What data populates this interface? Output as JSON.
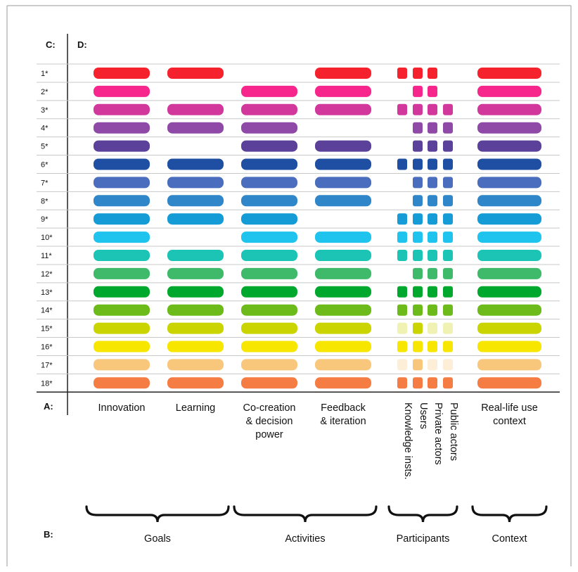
{
  "labels": {
    "c": "C:",
    "d": "D:",
    "a": "A:",
    "b": "B:"
  },
  "rows": [
    "1*",
    "2*",
    "3*",
    "4*",
    "5*",
    "6*",
    "7*",
    "8*",
    "9*",
    "10*",
    "11*",
    "12*",
    "13*",
    "14*",
    "15*",
    "16*",
    "17*",
    "18*"
  ],
  "row_colors": [
    "#f5222d",
    "#f7268c",
    "#d2389c",
    "#8e4aa6",
    "#5b419a",
    "#1f4fa3",
    "#4a6ebd",
    "#2f86c9",
    "#159bd6",
    "#1fc4ee",
    "#1cc4b6",
    "#3fba6a",
    "#00a82d",
    "#6dbb1a",
    "#c9d400",
    "#f7e600",
    "#f9c77c",
    "#f57d43"
  ],
  "columns": [
    {
      "key": "innovation",
      "label_lines": [
        "Innovation"
      ],
      "rows": [
        1,
        2,
        3,
        4,
        5,
        6,
        7,
        8,
        9,
        10,
        11,
        12,
        13,
        14,
        15,
        16,
        17,
        18
      ]
    },
    {
      "key": "learning",
      "label_lines": [
        "Learning"
      ],
      "rows": [
        1,
        3,
        4,
        6,
        7,
        8,
        9,
        11,
        12,
        13,
        14,
        15,
        16,
        17,
        18
      ]
    },
    {
      "key": "co-creation",
      "label_lines": [
        "Co-creation",
        "& decision",
        "power"
      ],
      "rows": [
        2,
        3,
        4,
        5,
        6,
        7,
        8,
        9,
        10,
        11,
        12,
        13,
        14,
        15,
        16,
        17,
        18
      ]
    },
    {
      "key": "feedback",
      "label_lines": [
        "Feedback",
        "& iteration"
      ],
      "rows": [
        1,
        2,
        3,
        5,
        6,
        7,
        8,
        10,
        11,
        12,
        13,
        14,
        15,
        16,
        17,
        18
      ]
    },
    {
      "key": "real-life",
      "label_lines": [
        "Real-life use",
        "context"
      ],
      "rows": [
        1,
        2,
        3,
        4,
        5,
        6,
        7,
        8,
        9,
        10,
        11,
        12,
        13,
        14,
        15,
        16,
        17,
        18
      ]
    }
  ],
  "participants": {
    "labels": [
      "Knowledge insts.",
      "Users",
      "Private actors",
      "Public actors"
    ],
    "rows": {
      "1": [
        1,
        1,
        1,
        0
      ],
      "2": [
        0,
        1,
        1,
        0
      ],
      "3": [
        1,
        1,
        1,
        1
      ],
      "4": [
        0,
        1,
        1,
        1
      ],
      "5": [
        0,
        1,
        1,
        1
      ],
      "6": [
        1,
        1,
        1,
        1
      ],
      "7": [
        0,
        1,
        1,
        1
      ],
      "8": [
        0,
        1,
        1,
        1
      ],
      "9": [
        1,
        1,
        1,
        1
      ],
      "10": [
        1,
        1,
        1,
        1
      ],
      "11": [
        1,
        1,
        1,
        1
      ],
      "12": [
        0,
        1,
        1,
        1
      ],
      "13": [
        1,
        1,
        1,
        1
      ],
      "14": [
        1,
        1,
        1,
        1
      ],
      "15": [
        0.3,
        1,
        0.3,
        0.3
      ],
      "16": [
        1,
        1,
        1,
        1
      ],
      "17": [
        0.3,
        1,
        0.3,
        0.3
      ],
      "18": [
        1,
        1,
        1,
        1
      ]
    }
  },
  "groups": [
    "Goals",
    "Activities",
    "Participants",
    "Context"
  ]
}
